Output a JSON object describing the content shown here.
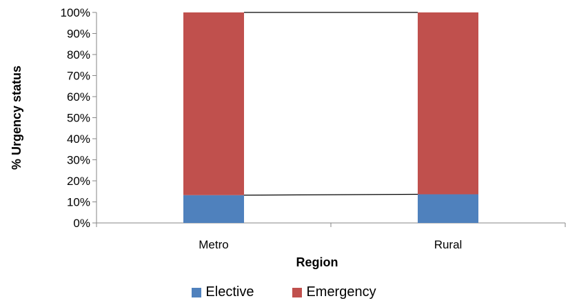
{
  "chart_data": {
    "type": "bar",
    "stacked": true,
    "percent_stacked": true,
    "title": "",
    "xlabel": "Region",
    "ylabel": "% Urgency status",
    "ylim": [
      0,
      100
    ],
    "yticks": [
      "0%",
      "10%",
      "20%",
      "30%",
      "40%",
      "50%",
      "60%",
      "70%",
      "80%",
      "90%",
      "100%"
    ],
    "categories": [
      "Metro",
      "Rural"
    ],
    "series": [
      {
        "name": "Elective",
        "values": [
          13.2,
          13.6
        ],
        "color": "#4f81bd"
      },
      {
        "name": "Emergency",
        "values": [
          86.8,
          86.4
        ],
        "color": "#c0504d"
      }
    ],
    "series_lines": true,
    "grid": false,
    "legend_position": "bottom"
  }
}
